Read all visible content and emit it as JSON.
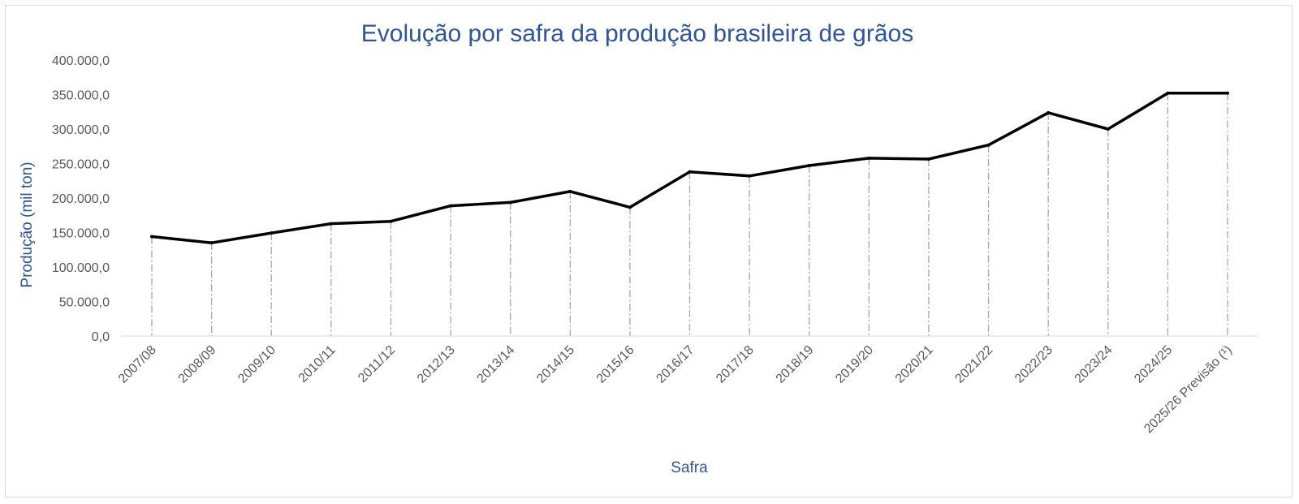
{
  "chart_data": {
    "type": "line",
    "title": "Evolução por safra da produção brasileira de grãos",
    "xlabel": "Safra",
    "ylabel": "Produção (mil ton)",
    "ylim": [
      0,
      400000
    ],
    "y_ticks": [
      "0,0",
      "50.000,0",
      "100.000,0",
      "150.000,0",
      "200.000,0",
      "250.000,0",
      "300.000,0",
      "350.000,0",
      "400.000,0"
    ],
    "y_tick_values": [
      0,
      50000,
      100000,
      150000,
      200000,
      250000,
      300000,
      350000,
      400000
    ],
    "categories": [
      "2007/08",
      "2008/09",
      "2009/10",
      "2010/11",
      "2011/12",
      "2012/13",
      "2013/14",
      "2014/15",
      "2015/16",
      "2016/17",
      "2017/18",
      "2018/19",
      "2019/20",
      "2020/21",
      "2021/22",
      "2022/23",
      "2023/24",
      "2024/25",
      "2025/26 Previsão (¹)"
    ],
    "series": [
      {
        "values": [
          144100,
          135100,
          149300,
          162800,
          166200,
          188700,
          193600,
          209500,
          186600,
          238000,
          232000,
          247000,
          257800,
          256500,
          276800,
          323700,
          300000,
          352000,
          352000
        ],
        "color": "#000000"
      }
    ],
    "drop_lines": true,
    "drop_line_color": "#a6a6a6",
    "grid": false,
    "legend": "none"
  }
}
